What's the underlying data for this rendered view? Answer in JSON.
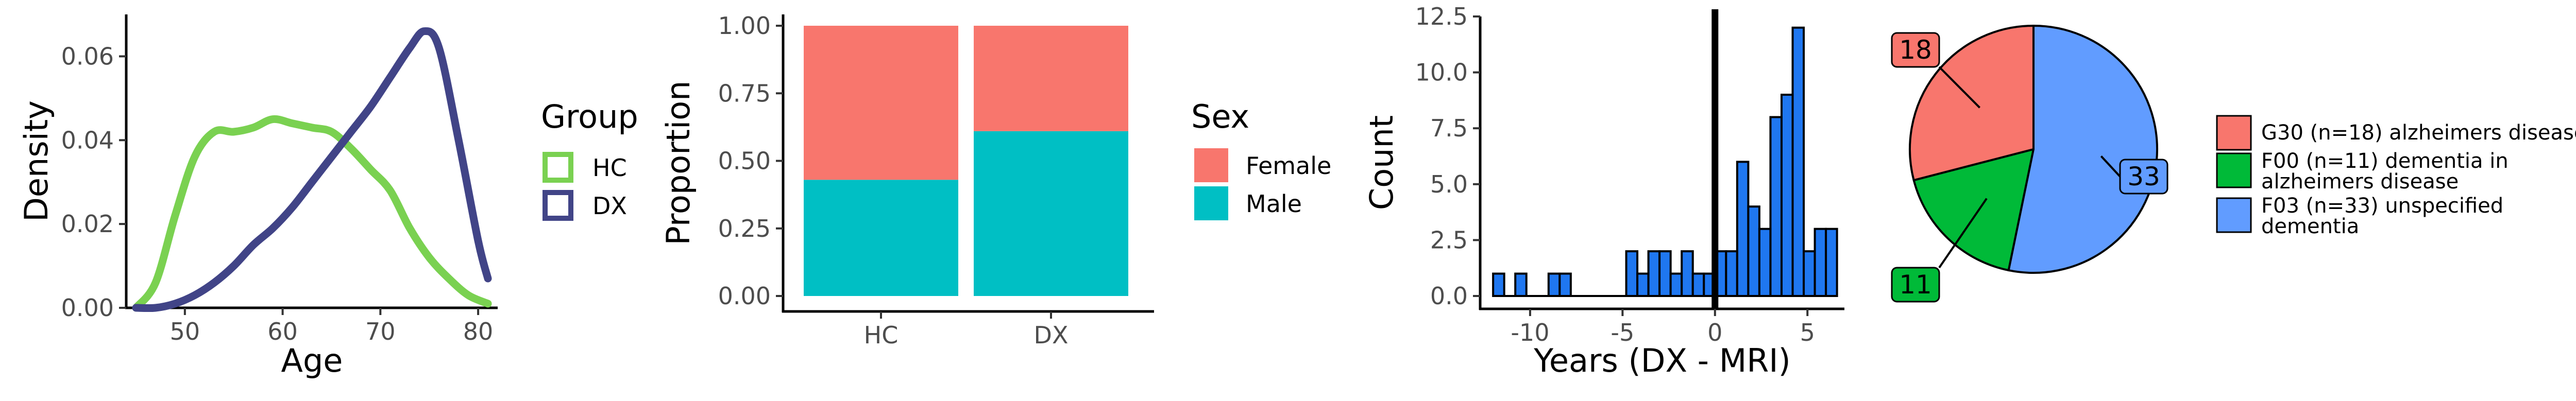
{
  "chart_data": [
    {
      "type": "line",
      "subtype": "density",
      "xlabel": "Age",
      "ylabel": "Density",
      "xlim": [
        44,
        82
      ],
      "ylim": [
        0,
        0.07
      ],
      "x_ticks": [
        50,
        60,
        70,
        80
      ],
      "y_ticks": [
        0.0,
        0.02,
        0.04,
        0.06
      ],
      "y_tick_labels": [
        "0.00",
        "0.02",
        "0.04",
        "0.06"
      ],
      "legend": {
        "title": "Group",
        "placement": "right"
      },
      "grid": false,
      "series": [
        {
          "name": "HC",
          "color": "#7ad151",
          "x": [
            45,
            47,
            49,
            51,
            53,
            55,
            57,
            59,
            61,
            63,
            65,
            67,
            69,
            71,
            73,
            75,
            77,
            79,
            81
          ],
          "y": [
            0.0,
            0.006,
            0.022,
            0.036,
            0.042,
            0.042,
            0.043,
            0.045,
            0.044,
            0.043,
            0.042,
            0.038,
            0.033,
            0.028,
            0.019,
            0.012,
            0.007,
            0.003,
            0.001
          ]
        },
        {
          "name": "DX",
          "color": "#414487",
          "x": [
            45,
            47,
            49,
            51,
            53,
            55,
            57,
            59,
            61,
            63,
            65,
            67,
            69,
            71,
            73,
            74.5,
            76,
            78,
            80,
            81
          ],
          "y": [
            0.0,
            0.0,
            0.001,
            0.003,
            0.006,
            0.01,
            0.015,
            0.019,
            0.024,
            0.03,
            0.036,
            0.042,
            0.048,
            0.055,
            0.062,
            0.066,
            0.062,
            0.04,
            0.016,
            0.007
          ]
        }
      ]
    },
    {
      "type": "bar",
      "subtype": "stacked-proportion",
      "xlabel": "",
      "ylabel": "Proportion",
      "ylim": [
        0,
        1
      ],
      "y_ticks": [
        0,
        0.25,
        0.5,
        0.75,
        1
      ],
      "y_tick_labels": [
        "0.00",
        "0.25",
        "0.50",
        "0.75",
        "1.00"
      ],
      "categories": [
        "HC",
        "DX"
      ],
      "legend": {
        "title": "Sex",
        "placement": "right"
      },
      "grid": false,
      "series": [
        {
          "name": "Female",
          "color": "#f8766d",
          "values": [
            0.57,
            0.39
          ]
        },
        {
          "name": "Male",
          "color": "#00bfc4",
          "values": [
            0.43,
            0.61
          ]
        }
      ]
    },
    {
      "type": "bar",
      "subtype": "histogram",
      "xlabel": "Years (DX - MRI)",
      "ylabel": "Count",
      "xlim": [
        -12.7,
        7.0
      ],
      "ylim": [
        0,
        12.5
      ],
      "x_ticks": [
        -10,
        -5,
        0,
        5
      ],
      "y_ticks": [
        0,
        2.5,
        5,
        7.5,
        10,
        12.5
      ],
      "y_tick_labels": [
        "0.0",
        "2.5",
        "5.0",
        "7.5",
        "10.0",
        "12.5"
      ],
      "bin_width": 0.6,
      "bar_color": "#1f77f0",
      "reference_line_x": 0,
      "grid": false,
      "bins": [
        {
          "x": -11.7,
          "count": 1
        },
        {
          "x": -10.5,
          "count": 1
        },
        {
          "x": -8.7,
          "count": 1
        },
        {
          "x": -8.1,
          "count": 1
        },
        {
          "x": -4.5,
          "count": 2
        },
        {
          "x": -3.9,
          "count": 1
        },
        {
          "x": -3.3,
          "count": 2
        },
        {
          "x": -2.7,
          "count": 2
        },
        {
          "x": -2.1,
          "count": 1
        },
        {
          "x": -1.5,
          "count": 2
        },
        {
          "x": -0.9,
          "count": 1
        },
        {
          "x": -0.3,
          "count": 1
        },
        {
          "x": 0.3,
          "count": 2
        },
        {
          "x": 0.9,
          "count": 2
        },
        {
          "x": 1.5,
          "count": 6
        },
        {
          "x": 2.1,
          "count": 4
        },
        {
          "x": 2.7,
          "count": 3
        },
        {
          "x": 3.3,
          "count": 8
        },
        {
          "x": 3.9,
          "count": 9
        },
        {
          "x": 4.5,
          "count": 12
        },
        {
          "x": 5.1,
          "count": 2
        },
        {
          "x": 5.7,
          "count": 3
        },
        {
          "x": 6.3,
          "count": 3
        }
      ]
    },
    {
      "type": "pie",
      "legend": {
        "placement": "right"
      },
      "slices": [
        {
          "label_line1": "G30 (n=18) alzheimers disease",
          "label_line2": "",
          "value": 18,
          "color": "#f8766d",
          "callout_side": "left-top"
        },
        {
          "label_line1": "F00 (n=11) dementia in",
          "label_line2": "alzheimers disease",
          "value": 11,
          "color": "#00ba38",
          "callout_side": "left-bottom"
        },
        {
          "label_line1": "F03 (n=33) unspecified",
          "label_line2": "dementia",
          "value": 33,
          "color": "#619cff",
          "callout_side": "right"
        }
      ]
    }
  ]
}
